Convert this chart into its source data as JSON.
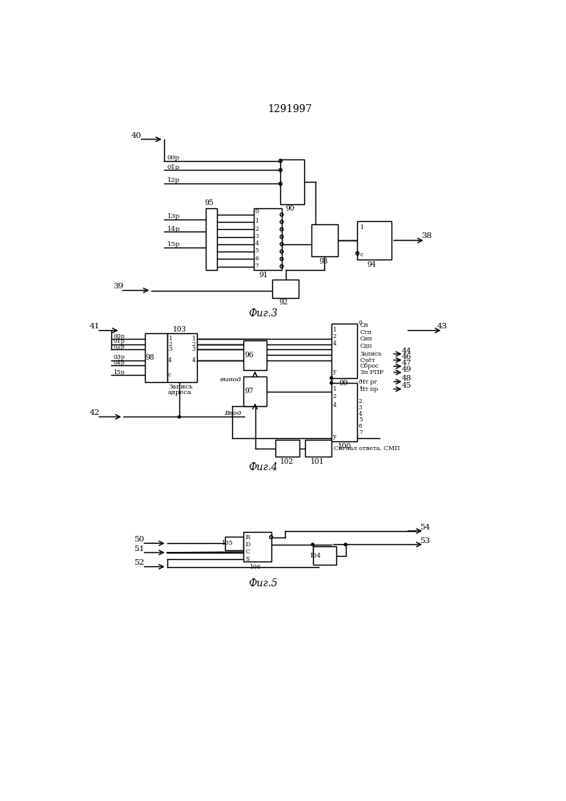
{
  "title": "1291997",
  "bg_color": "#ffffff",
  "lw": 1.0,
  "fig3_label": "Фиг.3",
  "fig4_label": "Фиг.4",
  "fig5_label": "Фиг.5"
}
